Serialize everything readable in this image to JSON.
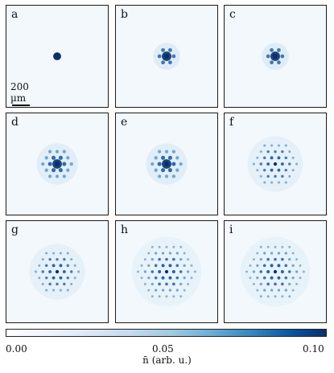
{
  "panels": [
    {
      "label": "a",
      "shells": 0
    },
    {
      "label": "b",
      "shells": 1
    },
    {
      "label": "c",
      "shells": 1
    },
    {
      "label": "d",
      "shells": 2
    },
    {
      "label": "e",
      "shells": 2
    },
    {
      "label": "f",
      "shells": 3
    },
    {
      "label": "g",
      "shells": 3
    },
    {
      "label": "h",
      "shells": 4
    },
    {
      "label": "i",
      "shells": 4
    }
  ],
  "scalebar": {
    "label": "200 µm"
  },
  "colorbar": {
    "ticks": [
      "0.00",
      "0.05",
      "0.10"
    ],
    "label": "n̄ (arb. u.)",
    "colors": [
      "#ffffff",
      "#c6dbef",
      "#6baed6",
      "#08519c",
      "#08306b"
    ]
  }
}
